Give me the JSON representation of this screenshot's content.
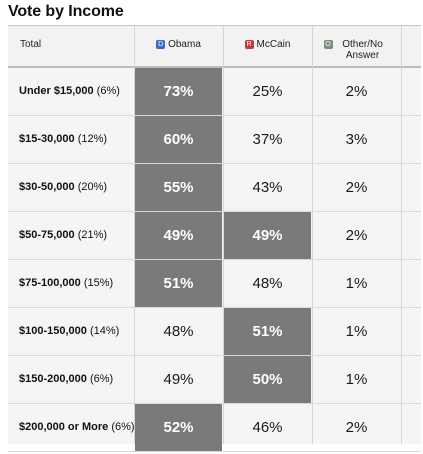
{
  "title": "Vote by Income",
  "header": {
    "total": "Total",
    "candidates": [
      {
        "badge": "D",
        "name": "Obama",
        "color": "#3a6bc4"
      },
      {
        "badge": "R",
        "name": "McCain",
        "color": "#c43a3a"
      },
      {
        "badge": "O",
        "name": "Other/No Answer",
        "color": "#7c8c7c"
      }
    ]
  },
  "rows": [
    {
      "income": "Under $15,000",
      "share": "(6%)",
      "obama": "73%",
      "mccain": "25%",
      "other": "2%",
      "winner": "obama"
    },
    {
      "income": "$15-30,000",
      "share": "(12%)",
      "obama": "60%",
      "mccain": "37%",
      "other": "3%",
      "winner": "obama"
    },
    {
      "income": "$30-50,000",
      "share": "(20%)",
      "obama": "55%",
      "mccain": "43%",
      "other": "2%",
      "winner": "obama"
    },
    {
      "income": "$50-75,000",
      "share": "(21%)",
      "obama": "49%",
      "mccain": "49%",
      "other": "2%",
      "winner": "tie"
    },
    {
      "income": "$75-100,000",
      "share": "(15%)",
      "obama": "51%",
      "mccain": "48%",
      "other": "1%",
      "winner": "obama"
    },
    {
      "income": "$100-150,000",
      "share": "(14%)",
      "obama": "48%",
      "mccain": "51%",
      "other": "1%",
      "winner": "mccain"
    },
    {
      "income": "$150-200,000",
      "share": "(6%)",
      "obama": "49%",
      "mccain": "50%",
      "other": "1%",
      "winner": "mccain"
    },
    {
      "income": "$200,000 or More",
      "share": "(6%)",
      "obama": "52%",
      "mccain": "46%",
      "other": "2%",
      "winner": "obama"
    }
  ],
  "colors": {
    "highlight": "#7a7a7a",
    "background": "#f5f5f5"
  }
}
